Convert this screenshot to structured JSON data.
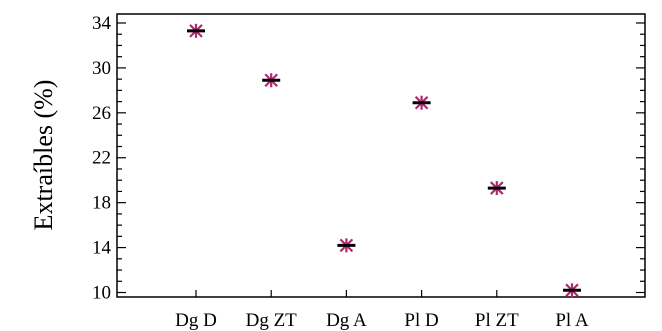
{
  "chart_data": {
    "type": "scatter",
    "ylabel": "Extraíbles (%)",
    "xlabel": "",
    "categories": [
      "Dg D",
      "Dg ZT",
      "Dg A",
      "Pl D",
      "Pl ZT",
      "Pl A"
    ],
    "values": [
      33.3,
      28.9,
      14.2,
      26.9,
      19.3,
      10.2
    ],
    "y_ticks": [
      "10",
      "14",
      "18",
      "22",
      "26",
      "30",
      "34"
    ],
    "ylim": [
      9.6,
      34.8
    ],
    "marker": "asterisk",
    "colors": {
      "marker_cross": "#b0286e",
      "marker_bar": "#000000",
      "axis": "#000000"
    },
    "grid": false
  }
}
